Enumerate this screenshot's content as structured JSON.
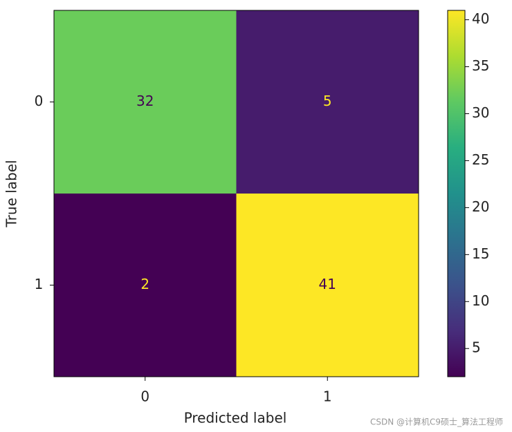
{
  "chart_data": {
    "type": "heatmap",
    "x_categories": [
      "0",
      "1"
    ],
    "y_categories": [
      "0",
      "1"
    ],
    "values": [
      [
        32,
        5
      ],
      [
        2,
        41
      ]
    ],
    "xlabel": "Predicted label",
    "ylabel": "True label",
    "colormap": "viridis",
    "clim": [
      2,
      41
    ],
    "colorbar_ticks": [
      5,
      10,
      15,
      20,
      25,
      30,
      35,
      40
    ],
    "watermark": "CSDN @计算机C9硕士_算法工程师"
  }
}
